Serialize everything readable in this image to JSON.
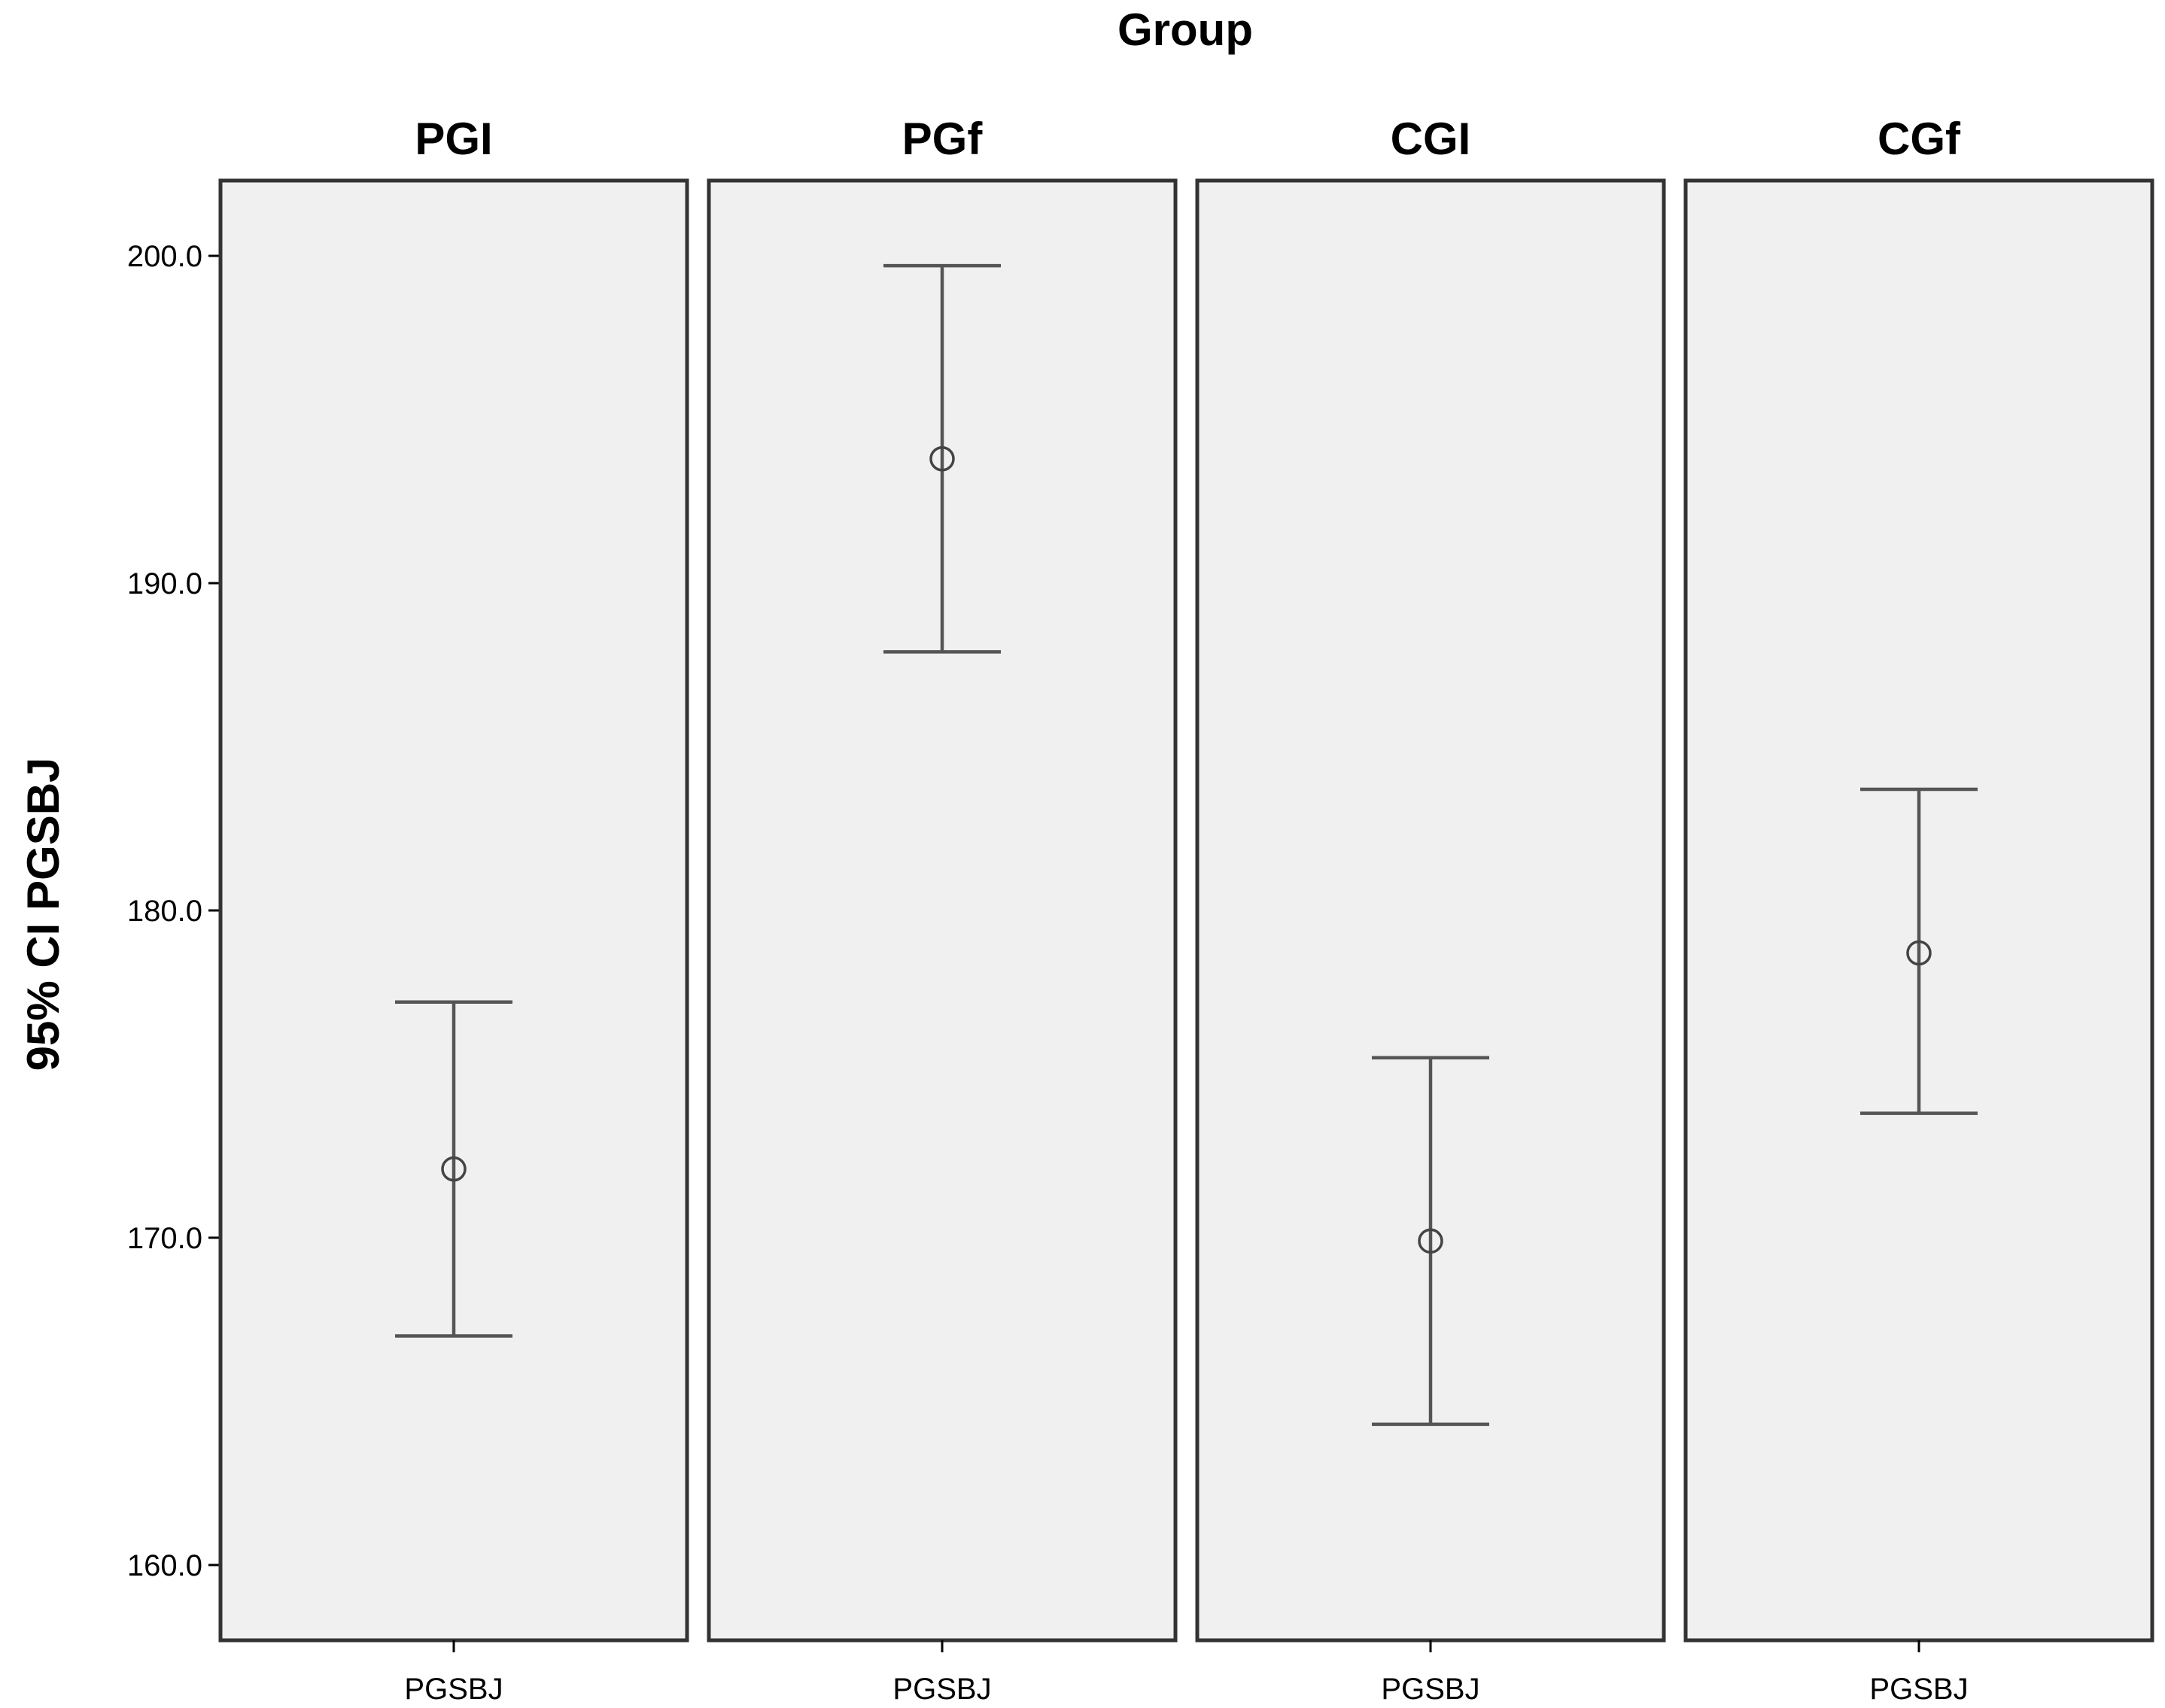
{
  "chart_data": {
    "type": "errorbar",
    "title": "",
    "facet_title": "Group",
    "xlabel": "",
    "ylabel": "95% CI PGSBJ",
    "ylim": [
      157.7,
      202.3
    ],
    "yticks": [
      160,
      170,
      180,
      190,
      200
    ],
    "ytick_labels": [
      "160.0",
      "170.0",
      "180.0",
      "190.0",
      "200.0"
    ],
    "grid": false,
    "panels": [
      {
        "group": "PGI",
        "category": "PGSBJ",
        "mean": 172.1,
        "lower": 167.0,
        "upper": 177.2
      },
      {
        "group": "PGf",
        "category": "PGSBJ",
        "mean": 193.8,
        "lower": 187.9,
        "upper": 199.7
      },
      {
        "group": "CGI",
        "category": "PGSBJ",
        "mean": 169.9,
        "lower": 164.3,
        "upper": 175.5
      },
      {
        "group": "CGf",
        "category": "PGSBJ",
        "mean": 178.7,
        "lower": 173.8,
        "upper": 183.7
      }
    ]
  }
}
